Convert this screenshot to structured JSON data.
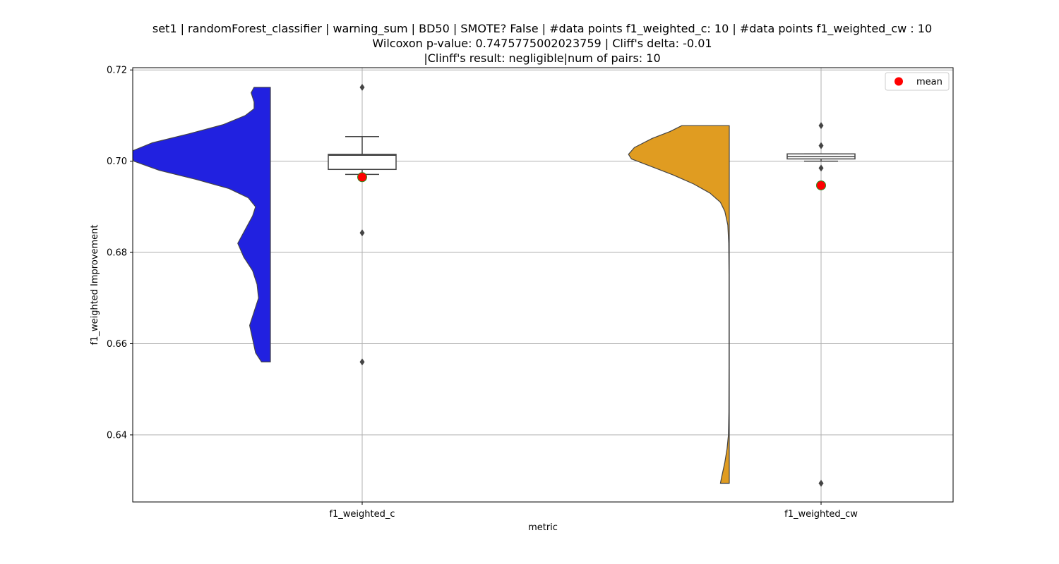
{
  "chart_data": {
    "type": "raincloud",
    "title_lines": [
      "set1 | randomForest_classifier | warning_sum | BD50 | SMOTE? False | #data points f1_weighted_c: 10 | #data points f1_weighted_cw : 10",
      "Wilcoxon p-value: 0.7475775002023759 | Cliff's delta: -0.01",
      "|Clinff's result: negligible|num of pairs: 10"
    ],
    "xlabel": "metric",
    "ylabel": "f1_weighted Improvement",
    "ylim": [
      0.6253,
      0.7205
    ],
    "yticks": [
      0.64,
      0.66,
      0.68,
      0.7,
      0.72
    ],
    "ytick_labels": [
      "0.64",
      "0.66",
      "0.68",
      "0.70",
      "0.72"
    ],
    "categories": [
      "f1_weighted_c",
      "f1_weighted_cw"
    ],
    "grid": true,
    "legend": {
      "position": "top-right",
      "entries": [
        {
          "label": "mean",
          "color": "#ff0000"
        }
      ]
    },
    "series": [
      {
        "category": "f1_weighted_c",
        "violin_color": "#2121e0",
        "box": {
          "q1": 0.6982,
          "median": 0.7013,
          "q3": 0.7015,
          "whisker_low": 0.6971,
          "whisker_high": 0.7054
        },
        "outliers": [
          0.7162,
          0.6843,
          0.656
        ],
        "mean": 0.6965,
        "violin_range": [
          0.656,
          0.7162
        ],
        "violin_profile": [
          [
            0.656,
            0.06
          ],
          [
            0.658,
            0.1
          ],
          [
            0.661,
            0.12
          ],
          [
            0.664,
            0.14
          ],
          [
            0.667,
            0.11
          ],
          [
            0.67,
            0.08
          ],
          [
            0.673,
            0.09
          ],
          [
            0.676,
            0.12
          ],
          [
            0.679,
            0.18
          ],
          [
            0.682,
            0.22
          ],
          [
            0.685,
            0.17
          ],
          [
            0.688,
            0.12
          ],
          [
            0.69,
            0.1
          ],
          [
            0.692,
            0.15
          ],
          [
            0.694,
            0.28
          ],
          [
            0.696,
            0.5
          ],
          [
            0.698,
            0.75
          ],
          [
            0.7,
            0.92
          ],
          [
            0.702,
            0.95
          ],
          [
            0.704,
            0.8
          ],
          [
            0.706,
            0.55
          ],
          [
            0.708,
            0.32
          ],
          [
            0.71,
            0.17
          ],
          [
            0.7115,
            0.11
          ],
          [
            0.713,
            0.11
          ],
          [
            0.715,
            0.13
          ],
          [
            0.7162,
            0.11
          ]
        ]
      },
      {
        "category": "f1_weighted_cw",
        "violin_color": "#e09c21",
        "box": {
          "q1": 0.7005,
          "median": 0.701,
          "q3": 0.7016,
          "whisker_low": 0.7,
          "whisker_high": 0.7016
        },
        "outliers": [
          0.7078,
          0.7034,
          0.6985,
          0.6294
        ],
        "mean": 0.6947,
        "violin_range": [
          0.6294,
          0.7078
        ],
        "violin_profile": [
          [
            0.6294,
            0.06
          ],
          [
            0.631,
            0.05
          ],
          [
            0.634,
            0.03
          ],
          [
            0.637,
            0.015
          ],
          [
            0.64,
            0.006
          ],
          [
            0.645,
            0.003
          ],
          [
            0.655,
            0.002
          ],
          [
            0.665,
            0.002
          ],
          [
            0.675,
            0.002
          ],
          [
            0.682,
            0.004
          ],
          [
            0.686,
            0.01
          ],
          [
            0.689,
            0.03
          ],
          [
            0.691,
            0.06
          ],
          [
            0.693,
            0.13
          ],
          [
            0.695,
            0.24
          ],
          [
            0.697,
            0.38
          ],
          [
            0.699,
            0.54
          ],
          [
            0.7005,
            0.66
          ],
          [
            0.7015,
            0.68
          ],
          [
            0.703,
            0.64
          ],
          [
            0.705,
            0.52
          ],
          [
            0.7065,
            0.4
          ],
          [
            0.7078,
            0.32
          ]
        ]
      }
    ]
  }
}
